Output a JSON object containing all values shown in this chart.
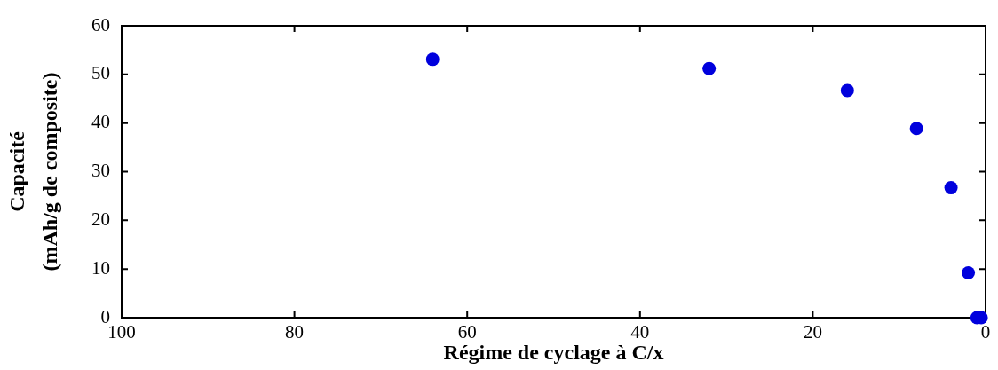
{
  "chart_data": {
    "type": "scatter",
    "xlabel": "Régime de cyclage à C/x",
    "ylabel": "Capacité\n(mAh/g de composite)",
    "x": [
      64,
      32,
      16,
      8,
      4,
      2,
      1,
      0.5
    ],
    "values": [
      53.1,
      51.2,
      46.7,
      38.9,
      26.7,
      9.2,
      0,
      0
    ],
    "color": "#0000dd",
    "xlim": [
      100,
      0
    ],
    "xticks": [
      100,
      80,
      60,
      40,
      20,
      0
    ],
    "ylim": [
      0,
      60
    ],
    "yticks": [
      0,
      10,
      20,
      30,
      40,
      50,
      60
    ],
    "marker": "circle",
    "grid": false
  }
}
